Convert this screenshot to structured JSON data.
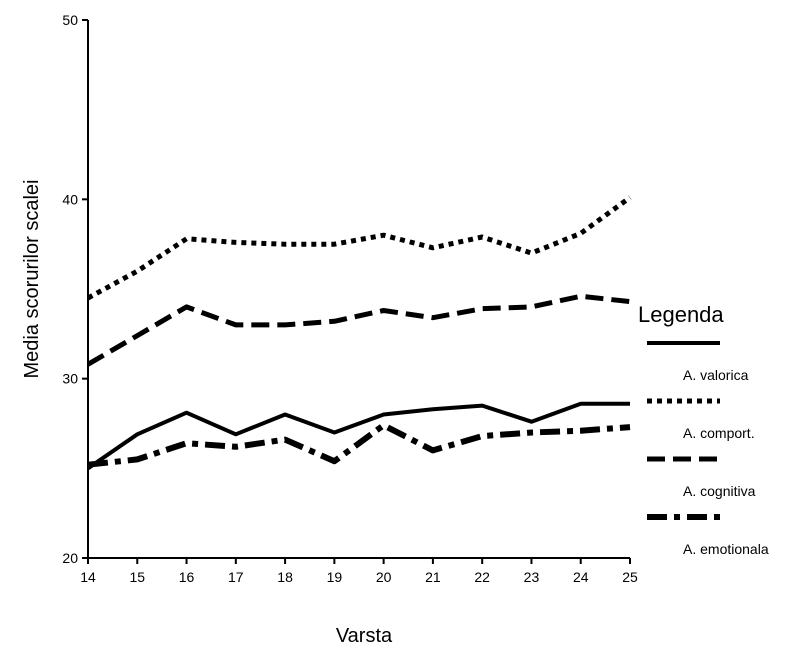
{
  "chart_data": {
    "type": "line",
    "title": "",
    "xlabel": "Varsta",
    "ylabel": "Media scorurilor scalei",
    "x": [
      14,
      15,
      16,
      17,
      18,
      19,
      20,
      21,
      22,
      23,
      24,
      25
    ],
    "xlim": [
      14,
      25
    ],
    "ylim": [
      20,
      50
    ],
    "yticks": [
      20,
      30,
      40,
      50
    ],
    "grid": false,
    "legend_title": "Legenda",
    "legend_position": "right",
    "series": [
      {
        "name": "A. valorica",
        "style": "solid",
        "values": [
          25.0,
          26.9,
          28.1,
          26.9,
          28.0,
          27.0,
          28.0,
          28.3,
          28.5,
          27.6,
          28.6,
          28.6
        ]
      },
      {
        "name": "A. comport.",
        "style": "dotted",
        "values": [
          34.5,
          36.0,
          37.8,
          37.6,
          37.5,
          37.5,
          38.0,
          37.3,
          37.9,
          37.0,
          38.1,
          40.1
        ]
      },
      {
        "name": "A. cognitiva",
        "style": "dashed",
        "values": [
          30.8,
          32.4,
          34.0,
          33.0,
          33.0,
          33.2,
          33.8,
          33.4,
          33.9,
          34.0,
          34.6,
          34.3
        ]
      },
      {
        "name": "A. emotionala",
        "style": "dash-dot",
        "values": [
          25.2,
          25.5,
          26.4,
          26.2,
          26.6,
          25.4,
          27.4,
          26.0,
          26.8,
          27.0,
          27.1,
          27.3
        ]
      }
    ]
  }
}
